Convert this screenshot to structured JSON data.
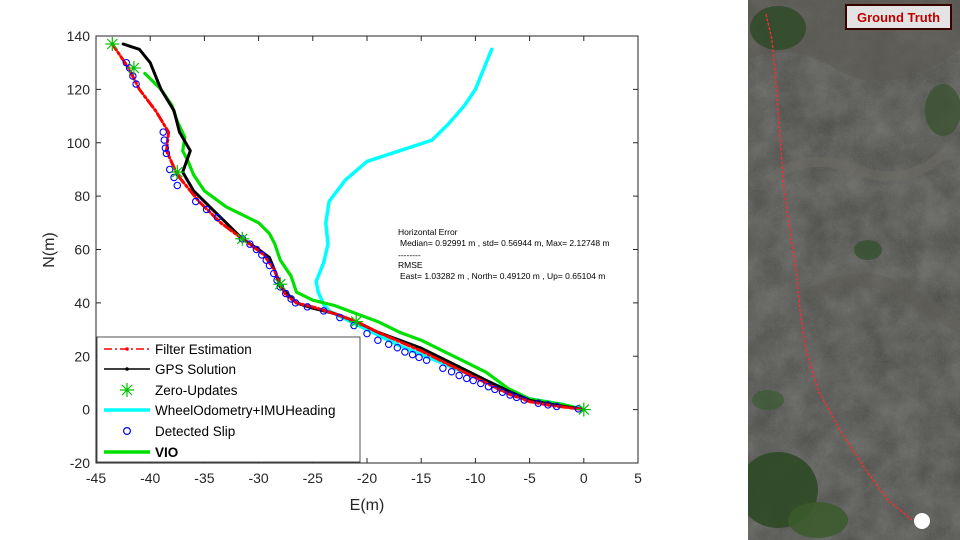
{
  "chart_data": {
    "type": "line",
    "xlabel": "E(m)",
    "ylabel": "N(m)",
    "xlim": [
      -45,
      5
    ],
    "ylim": [
      -20,
      140
    ],
    "xticks": [
      -45,
      -40,
      -35,
      -30,
      -25,
      -20,
      -15,
      -10,
      -5,
      0,
      5
    ],
    "yticks": [
      -20,
      0,
      20,
      40,
      60,
      80,
      100,
      120,
      140
    ],
    "grid": false,
    "legend_position": "bottom-left",
    "series": [
      {
        "name": "GPS Solution",
        "color": "#000000",
        "points": [
          [
            0,
            0
          ],
          [
            -1.5,
            1
          ],
          [
            -3,
            2
          ],
          [
            -5,
            3.5
          ],
          [
            -7,
            7
          ],
          [
            -9,
            11
          ],
          [
            -11,
            15
          ],
          [
            -13,
            19
          ],
          [
            -15,
            23
          ],
          [
            -17,
            26
          ],
          [
            -19,
            29
          ],
          [
            -21,
            33
          ],
          [
            -23,
            36
          ],
          [
            -25,
            38
          ],
          [
            -26.5,
            40
          ],
          [
            -27,
            42
          ],
          [
            -28,
            46
          ],
          [
            -28.5,
            52
          ],
          [
            -29,
            57
          ],
          [
            -30,
            60
          ],
          [
            -31.5,
            64
          ],
          [
            -33,
            70
          ],
          [
            -34.5,
            76
          ],
          [
            -36,
            82
          ],
          [
            -37,
            89
          ],
          [
            -36.3,
            97
          ],
          [
            -37.3,
            104
          ],
          [
            -37.8,
            112
          ],
          [
            -39,
            120
          ],
          [
            -40,
            130
          ],
          [
            -41,
            135
          ],
          [
            -42.5,
            137
          ]
        ]
      },
      {
        "name": "Filter Estimation",
        "color": "#ff0000",
        "points": [
          [
            0,
            0
          ],
          [
            -1.5,
            0.8
          ],
          [
            -3,
            1.5
          ],
          [
            -5,
            3
          ],
          [
            -7,
            6
          ],
          [
            -9,
            10
          ],
          [
            -11,
            14
          ],
          [
            -13,
            18
          ],
          [
            -15,
            22
          ],
          [
            -17,
            25.5
          ],
          [
            -19,
            29
          ],
          [
            -21,
            33
          ],
          [
            -23,
            36
          ],
          [
            -25,
            38.5
          ],
          [
            -26.5,
            40
          ],
          [
            -27.5,
            43
          ],
          [
            -28,
            47
          ],
          [
            -28.5,
            52
          ],
          [
            -29.5,
            58
          ],
          [
            -31.5,
            64
          ],
          [
            -33.5,
            70
          ],
          [
            -35.5,
            78
          ],
          [
            -37.5,
            88
          ],
          [
            -38.5,
            97
          ],
          [
            -38.3,
            104
          ],
          [
            -39.5,
            112
          ],
          [
            -41,
            120
          ],
          [
            -42,
            128
          ],
          [
            -43.5,
            137
          ]
        ]
      },
      {
        "name": "WheelOdometry+IMUHeading",
        "color": "#00ffff",
        "points": [
          [
            0,
            0
          ],
          [
            -2,
            2
          ],
          [
            -5,
            4
          ],
          [
            -8,
            9
          ],
          [
            -11,
            14
          ],
          [
            -14,
            19
          ],
          [
            -17,
            24
          ],
          [
            -20,
            30
          ],
          [
            -22,
            34
          ],
          [
            -23.5,
            37
          ],
          [
            -24,
            39.5
          ],
          [
            -24.5,
            44
          ],
          [
            -24.7,
            48
          ],
          [
            -24,
            55
          ],
          [
            -23.6,
            62
          ],
          [
            -23.8,
            70
          ],
          [
            -23.5,
            78
          ],
          [
            -22,
            86
          ],
          [
            -20,
            93
          ],
          [
            -17,
            97
          ],
          [
            -14,
            101
          ],
          [
            -12.5,
            107
          ],
          [
            -11,
            114
          ],
          [
            -10,
            120
          ],
          [
            -9.2,
            128
          ],
          [
            -8.8,
            132
          ],
          [
            -8.5,
            135
          ]
        ]
      },
      {
        "name": "VIO",
        "color": "#00e000",
        "points": [
          [
            0,
            0
          ],
          [
            -2,
            2
          ],
          [
            -5,
            4
          ],
          [
            -7,
            8
          ],
          [
            -9,
            14
          ],
          [
            -11,
            18
          ],
          [
            -13,
            22
          ],
          [
            -15,
            26
          ],
          [
            -17,
            29
          ],
          [
            -19,
            33
          ],
          [
            -21,
            36
          ],
          [
            -23,
            39
          ],
          [
            -25,
            41
          ],
          [
            -26.5,
            44
          ],
          [
            -27,
            50
          ],
          [
            -28,
            56
          ],
          [
            -28.5,
            62
          ],
          [
            -29,
            66
          ],
          [
            -30,
            70
          ],
          [
            -33,
            76
          ],
          [
            -35,
            82
          ],
          [
            -36,
            88
          ],
          [
            -36.5,
            93
          ],
          [
            -37,
            97
          ],
          [
            -36.8,
            102
          ],
          [
            -37.5,
            108
          ],
          [
            -38,
            114
          ],
          [
            -39,
            120
          ],
          [
            -40.5,
            126
          ]
        ]
      }
    ],
    "zero_updates": [
      [
        0,
        0
      ],
      [
        -21,
        33
      ],
      [
        -28,
        47
      ],
      [
        -31.5,
        64
      ],
      [
        -37.5,
        89
      ],
      [
        -41.5,
        128
      ],
      [
        -43.5,
        137
      ]
    ],
    "detected_slip": [
      [
        -0.5,
        0.3
      ],
      [
        -2.5,
        1.2
      ],
      [
        -3.3,
        1.8
      ],
      [
        -4.2,
        2.4
      ],
      [
        -5.5,
        3.6
      ],
      [
        -6.2,
        4.6
      ],
      [
        -6.8,
        5.5
      ],
      [
        -7.5,
        6.5
      ],
      [
        -8.2,
        7.6
      ],
      [
        -8.8,
        8.6
      ],
      [
        -9.5,
        9.8
      ],
      [
        -10.2,
        10.9
      ],
      [
        -10.8,
        11.7
      ],
      [
        -11.5,
        12.8
      ],
      [
        -12.2,
        14.2
      ],
      [
        -13,
        15.5
      ],
      [
        -14.5,
        18.5
      ],
      [
        -15.2,
        19.6
      ],
      [
        -15.8,
        20.6
      ],
      [
        -16.5,
        21.6
      ],
      [
        -17.2,
        23.2
      ],
      [
        -18,
        24.5
      ],
      [
        -19,
        26
      ],
      [
        -20,
        28.5
      ],
      [
        -21.2,
        31.5
      ],
      [
        -22.5,
        34.5
      ],
      [
        -24,
        37
      ],
      [
        -25.5,
        38.5
      ],
      [
        -26.6,
        40
      ],
      [
        -27,
        41.5
      ],
      [
        -27.5,
        43.5
      ],
      [
        -28,
        46
      ],
      [
        -28.3,
        48.5
      ],
      [
        -28.6,
        51
      ],
      [
        -29,
        54
      ],
      [
        -29.3,
        56
      ],
      [
        -29.7,
        58
      ],
      [
        -30.2,
        60
      ],
      [
        -30.8,
        62
      ],
      [
        -31.5,
        64
      ],
      [
        -33.8,
        72
      ],
      [
        -34.8,
        75
      ],
      [
        -35.8,
        78
      ],
      [
        -37.5,
        84
      ],
      [
        -37.8,
        87
      ],
      [
        -38.2,
        90
      ],
      [
        -38.5,
        96
      ],
      [
        -38.6,
        98
      ],
      [
        -38.7,
        101
      ],
      [
        -38.8,
        104
      ],
      [
        -41.3,
        122
      ],
      [
        -41.6,
        125
      ],
      [
        -41.9,
        128
      ],
      [
        -42.2,
        130
      ]
    ],
    "legend": [
      {
        "label": "Filter Estimation",
        "style": "red dash-dot with point markers"
      },
      {
        "label": "GPS Solution",
        "style": "black line with dot markers"
      },
      {
        "label": "Zero-Updates",
        "style": "green asterisk"
      },
      {
        "label": "WheelOdometry+IMUHeading",
        "style": "cyan thick line"
      },
      {
        "label": "Detected Slip",
        "style": "blue circle"
      },
      {
        "label": "VIO",
        "style": "green thick line",
        "bold": true
      }
    ],
    "annotation": {
      "line1": "Horizontal Error",
      "line2": "Median= 0.92991  m , std= 0.56944  m, Max= 2.12748  m",
      "line3": "--------",
      "line4": "RMSE",
      "line5": "East= 1.03282  m , North= 0.49120 m , Up= 0.65104 m"
    }
  },
  "ground_truth_panel": {
    "badge_label": "Ground Truth",
    "badge_color": "#c00000",
    "path_color": "#ff2a2a"
  }
}
